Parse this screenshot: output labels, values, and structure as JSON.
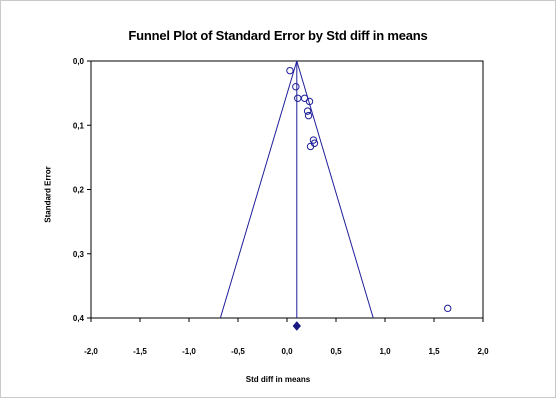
{
  "chart_data": {
    "type": "scatter",
    "title": "Funnel Plot of Standard Error by Std diff in means",
    "xlabel": "Std diff in means",
    "ylabel": "Standard Error",
    "xlim": [
      -2.0,
      2.0
    ],
    "ylim": [
      0.0,
      0.4
    ],
    "y_inverted": true,
    "x_ticks": [
      "-2,0",
      "-1,5",
      "-1,0",
      "-0,5",
      "0,0",
      "0,5",
      "1,0",
      "1,5",
      "2,0"
    ],
    "y_ticks": [
      "0,0",
      "0,1",
      "0,2",
      "0,3",
      "0,4"
    ],
    "x_tick_values": [
      -2.0,
      -1.5,
      -1.0,
      -0.5,
      0.0,
      0.5,
      1.0,
      1.5,
      2.0
    ],
    "y_tick_values": [
      0.0,
      0.1,
      0.2,
      0.3,
      0.4
    ],
    "points": [
      {
        "x": 0.03,
        "y": 0.015
      },
      {
        "x": 0.09,
        "y": 0.04
      },
      {
        "x": 0.11,
        "y": 0.058
      },
      {
        "x": 0.18,
        "y": 0.058
      },
      {
        "x": 0.23,
        "y": 0.063
      },
      {
        "x": 0.21,
        "y": 0.078
      },
      {
        "x": 0.22,
        "y": 0.085
      },
      {
        "x": 0.27,
        "y": 0.123
      },
      {
        "x": 0.28,
        "y": 0.128
      },
      {
        "x": 0.24,
        "y": 0.133
      },
      {
        "x": 1.64,
        "y": 0.385
      }
    ],
    "combined_effect": 0.1,
    "funnel": {
      "apex": [
        0.1,
        0.0
      ],
      "left_base": [
        -0.68,
        0.4
      ],
      "right_base": [
        0.88,
        0.4
      ]
    },
    "grid": false,
    "colors": {
      "lines": "#1f1f99",
      "points": "#1f1f99",
      "diamond": "#1a1a80",
      "axes": "#000000"
    }
  }
}
